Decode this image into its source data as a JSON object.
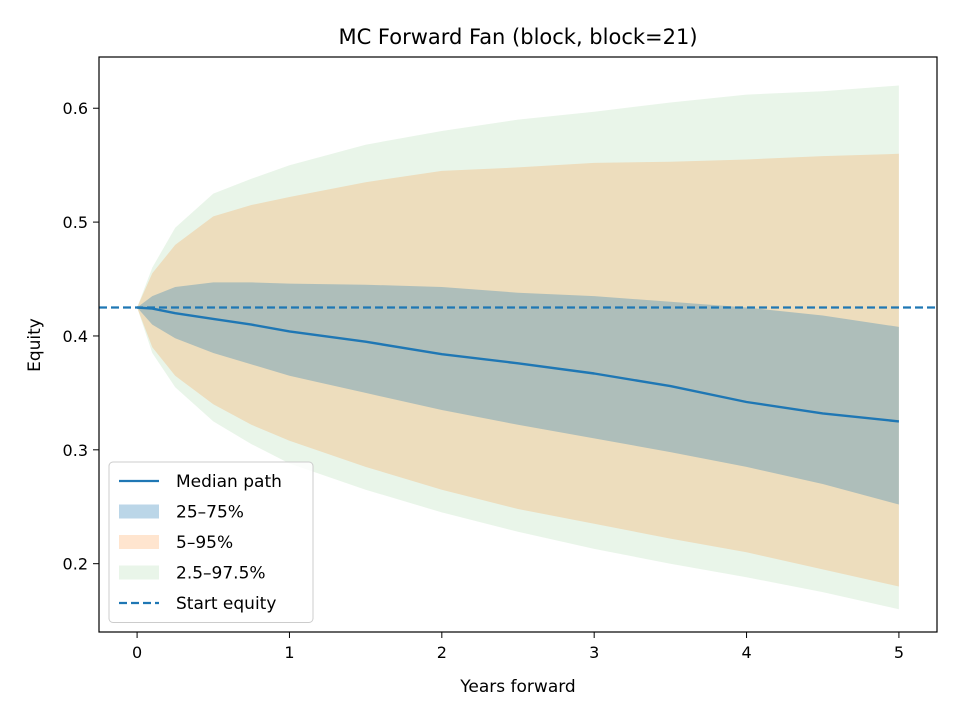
{
  "chart_data": {
    "type": "area",
    "title": "MC Forward Fan (block, block=21)",
    "xlabel": "Years forward",
    "ylabel": "Equity",
    "xlim": [
      -0.25,
      5.25
    ],
    "ylim": [
      0.14,
      0.645
    ],
    "xticks": [
      0,
      1,
      2,
      3,
      4,
      5
    ],
    "yticks": [
      0.2,
      0.3,
      0.4,
      0.5,
      0.6
    ],
    "xtick_labels": [
      "0",
      "1",
      "2",
      "3",
      "4",
      "5"
    ],
    "ytick_labels": [
      "0.2",
      "0.3",
      "0.4",
      "0.5",
      "0.6"
    ],
    "legend_position": "lower-left",
    "grid": false,
    "x": [
      0,
      0.1,
      0.25,
      0.5,
      0.75,
      1,
      1.5,
      2,
      2.5,
      3,
      3.5,
      4,
      4.5,
      5
    ],
    "bands": [
      {
        "name": "2.5–97.5%",
        "color": "#2ca02c",
        "opacity": 0.1,
        "lower": [
          0.425,
          0.385,
          0.355,
          0.325,
          0.305,
          0.288,
          0.265,
          0.245,
          0.228,
          0.213,
          0.2,
          0.188,
          0.175,
          0.16
        ],
        "upper": [
          0.425,
          0.46,
          0.495,
          0.525,
          0.538,
          0.55,
          0.568,
          0.58,
          0.59,
          0.597,
          0.605,
          0.612,
          0.615,
          0.62
        ]
      },
      {
        "name": "5–95%",
        "color": "#ff7f0e",
        "opacity": 0.2,
        "lower": [
          0.425,
          0.39,
          0.365,
          0.34,
          0.322,
          0.308,
          0.285,
          0.265,
          0.248,
          0.235,
          0.222,
          0.21,
          0.195,
          0.18
        ],
        "upper": [
          0.425,
          0.455,
          0.48,
          0.505,
          0.515,
          0.522,
          0.535,
          0.545,
          0.548,
          0.552,
          0.553,
          0.555,
          0.558,
          0.56
        ]
      },
      {
        "name": "25–75%",
        "color": "#1f77b4",
        "opacity": 0.3,
        "lower": [
          0.425,
          0.41,
          0.398,
          0.385,
          0.375,
          0.365,
          0.35,
          0.335,
          0.322,
          0.31,
          0.298,
          0.285,
          0.27,
          0.252
        ],
        "upper": [
          0.425,
          0.435,
          0.443,
          0.447,
          0.447,
          0.446,
          0.445,
          0.443,
          0.438,
          0.435,
          0.43,
          0.425,
          0.418,
          0.408
        ]
      }
    ],
    "series": [
      {
        "name": "Median path",
        "color": "#1f77b4",
        "style": "solid",
        "values": [
          0.425,
          0.424,
          0.42,
          0.415,
          0.41,
          0.404,
          0.395,
          0.384,
          0.376,
          0.367,
          0.356,
          0.342,
          0.332,
          0.325
        ]
      }
    ],
    "hlines": [
      {
        "name": "Start equity",
        "y": 0.425,
        "color": "#1f77b4",
        "style": "dashed"
      }
    ],
    "legend": [
      {
        "label": "Median path",
        "kind": "line",
        "color": "#1f77b4",
        "style": "solid"
      },
      {
        "label": "25–75%",
        "kind": "patch",
        "color": "#1f77b4",
        "opacity": 0.3
      },
      {
        "label": "5–95%",
        "kind": "patch",
        "color": "#ff7f0e",
        "opacity": 0.2
      },
      {
        "label": "2.5–97.5%",
        "kind": "patch",
        "color": "#2ca02c",
        "opacity": 0.1
      },
      {
        "label": "Start equity",
        "kind": "line",
        "color": "#1f77b4",
        "style": "dashed"
      }
    ]
  }
}
